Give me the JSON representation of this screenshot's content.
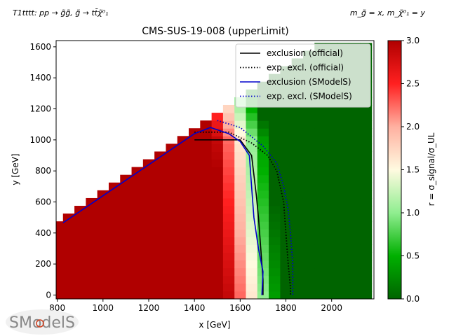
{
  "header": {
    "process_left": "T1tttt: pp → g̃g̃, g̃ → tt̄χ̃⁰₁",
    "mass_right": "m_g̃ = x, m_χ̃⁰₁ = y"
  },
  "logo_text": "SModelS",
  "chart_data": {
    "type": "heatmap",
    "title": "CMS-SUS-19-008 (upperLimit)",
    "xlabel": "x [GeV]",
    "ylabel": "y [GeV]",
    "xlim": [
      795,
      2185
    ],
    "ylim": [
      -25,
      1640
    ],
    "xticks": [
      800,
      1000,
      1200,
      1400,
      1600,
      1800,
      2000
    ],
    "yticks": [
      0,
      200,
      400,
      600,
      800,
      1000,
      1200,
      1400,
      1600
    ],
    "grid": false,
    "colorbar": {
      "label": "r = σ_signal/σ_UL",
      "range": [
        0,
        3
      ],
      "ticks": [
        0.0,
        0.5,
        1.0,
        1.5,
        2.0,
        2.5,
        3.0
      ],
      "colors": [
        "#006400",
        "#00b000",
        "#90ee90",
        "#fffae0",
        "#ffb0a0",
        "#ff2020",
        "#b00000"
      ]
    },
    "cell_width_gev": 50,
    "cell_height_gev": 50,
    "r_model": {
      "diagonal_offset_gev": 325,
      "boundary_at_y0": 1700,
      "boundary_at_ycap": 1650,
      "boundary_ycap": 1000,
      "transition_width_gev": 80
    },
    "legend": {
      "position": "upper right",
      "entries": [
        {
          "label": "exclusion (official)",
          "color": "#000000",
          "style": "solid"
        },
        {
          "label": "exp. excl. (official)",
          "color": "#000000",
          "style": "dotted"
        },
        {
          "label": "exclusion (SModelS)",
          "color": "#0000cc",
          "style": "solid"
        },
        {
          "label": "exp. excl. (SModelS)",
          "color": "#0000cc",
          "style": "dotted"
        }
      ]
    },
    "series": [
      {
        "name": "exclusion (official)",
        "x": [
          1400,
          1600,
          1650,
          1670,
          1680,
          1690,
          1700,
          1700
        ],
        "y": [
          1000,
          1000,
          900,
          650,
          500,
          300,
          100,
          0
        ]
      },
      {
        "name": "exp. excl. (official)",
        "x": [
          1400,
          1550,
          1650,
          1720,
          1760,
          1790,
          1800,
          1810,
          1820,
          1820
        ],
        "y": [
          1050,
          1050,
          980,
          900,
          800,
          600,
          400,
          200,
          50,
          0
        ]
      },
      {
        "name": "exclusion (SModelS)",
        "x": [
          825,
          1400,
          1470,
          1550,
          1600,
          1640,
          1650,
          1660,
          1680,
          1700,
          1695
        ],
        "y": [
          465,
          1040,
          1080,
          1040,
          990,
          900,
          700,
          500,
          300,
          150,
          0
        ]
      },
      {
        "name": "exp. excl. (SModelS)",
        "x": [
          1500,
          1600,
          1700,
          1760,
          1790,
          1810,
          1820,
          1830,
          1830
        ],
        "y": [
          1125,
          1080,
          960,
          850,
          700,
          550,
          400,
          200,
          0
        ]
      }
    ]
  }
}
